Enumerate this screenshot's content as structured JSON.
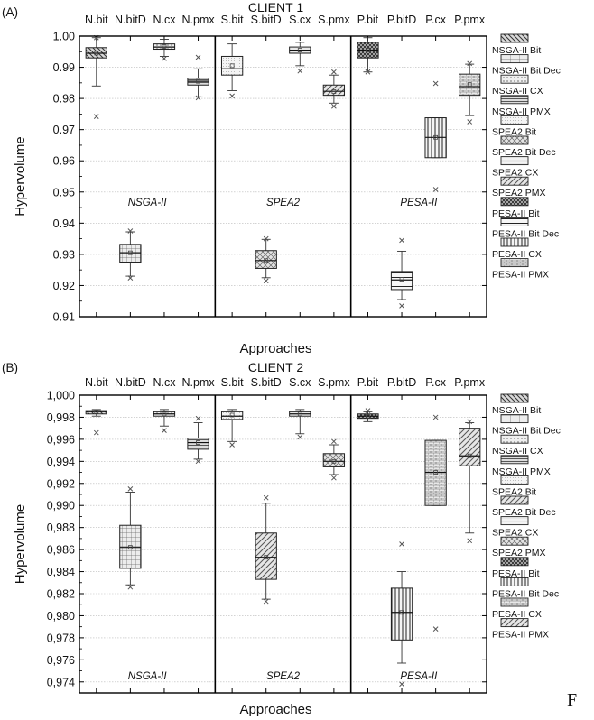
{
  "chart_data": [
    {
      "type": "box",
      "panel_label": "(A)",
      "title": "CLIENT 1",
      "xlabel": "Approaches",
      "ylabel": "Hypervolume",
      "ylim": [
        0.91,
        1.0
      ],
      "yticks": [
        0.91,
        0.92,
        0.93,
        0.94,
        0.95,
        0.96,
        0.97,
        0.98,
        0.99,
        1.0
      ],
      "ytick_labels": [
        "0.91",
        "0.92",
        "0.93",
        "0.94",
        "0.95",
        "0.96",
        "0.97",
        "0.98",
        "0.99",
        "1.00"
      ],
      "grid": true,
      "legend_position": "right",
      "categories": [
        "N.bit",
        "N.bitD",
        "N.cx",
        "N.pmx",
        "S.bit",
        "S.bitD",
        "S.cx",
        "S.pmx",
        "P.bit",
        "P.bitD",
        "P.cx",
        "P.pmx"
      ],
      "groups": [
        {
          "label": "NSGA-II",
          "start": 0,
          "end": 3
        },
        {
          "label": "SPEA2",
          "start": 4,
          "end": 7
        },
        {
          "label": "PESA-II",
          "start": 8,
          "end": 11
        }
      ],
      "series": [
        {
          "name": "NSGA-II Bit",
          "pattern": "diag-back",
          "whisker_low": 0.984,
          "q1": 0.993,
          "median": 0.9945,
          "q3": 0.9963,
          "whisker_high": 0.9995,
          "mean": 0.9945,
          "outliers": [
            0.9742,
            0.9995
          ]
        },
        {
          "name": "NSGA-II Bit Dec",
          "pattern": "grid",
          "whisker_low": 0.923,
          "q1": 0.9275,
          "median": 0.9305,
          "q3": 0.9332,
          "whisker_high": 0.9372,
          "mean": 0.9305,
          "outliers": [
            0.9224,
            0.9375
          ]
        },
        {
          "name": "NSGA-II CX",
          "pattern": "dots",
          "whisker_low": 0.9935,
          "q1": 0.9958,
          "median": 0.9965,
          "q3": 0.9975,
          "whisker_high": 0.999,
          "mean": 0.9967,
          "outliers": [
            0.9928
          ]
        },
        {
          "name": "NSGA-II PMX",
          "pattern": "hlines",
          "whisker_low": 0.9805,
          "q1": 0.9843,
          "median": 0.9855,
          "q3": 0.9865,
          "whisker_high": 0.9895,
          "mean": 0.9855,
          "outliers": [
            0.9932,
            0.9802
          ]
        },
        {
          "name": "SPEA2 Bit",
          "pattern": "fine-dots",
          "whisker_low": 0.9825,
          "q1": 0.9875,
          "median": 0.9895,
          "q3": 0.9935,
          "whisker_high": 0.9975,
          "mean": 0.9905,
          "outliers": [
            0.9808
          ]
        },
        {
          "name": "SPEA2 Bit Dec",
          "pattern": "crosshatch",
          "whisker_low": 0.9225,
          "q1": 0.9255,
          "median": 0.928,
          "q3": 0.9312,
          "whisker_high": 0.9348,
          "mean": 0.928,
          "outliers": [
            0.9215,
            0.935
          ]
        },
        {
          "name": "SPEA2 CX",
          "pattern": "light",
          "whisker_low": 0.9905,
          "q1": 0.9945,
          "median": 0.9955,
          "q3": 0.9965,
          "whisker_high": 0.998,
          "mean": 0.9955,
          "outliers": [
            0.9888
          ]
        },
        {
          "name": "SPEA2 PMX",
          "pattern": "diag-fwd",
          "whisker_low": 0.9785,
          "q1": 0.981,
          "median": 0.9823,
          "q3": 0.9843,
          "whisker_high": 0.9875,
          "mean": 0.9822,
          "outliers": [
            0.9885,
            0.9775
          ]
        },
        {
          "name": "PESA-II Bit",
          "pattern": "dense-cross",
          "whisker_low": 0.9885,
          "q1": 0.993,
          "median": 0.9955,
          "q3": 0.998,
          "whisker_high": 0.9995,
          "mean": 0.9955,
          "outliers": [
            0.9885
          ]
        },
        {
          "name": "PESA-II Bit Dec",
          "pattern": "hlines-wide",
          "whisker_low": 0.9155,
          "q1": 0.9187,
          "median": 0.9218,
          "q3": 0.9245,
          "whisker_high": 0.931,
          "mean": 0.922,
          "outliers": [
            0.9345,
            0.9135
          ]
        },
        {
          "name": "PESA-II CX",
          "pattern": "vlines",
          "whisker_low": 0.961,
          "q1": 0.961,
          "median": 0.9675,
          "q3": 0.9738,
          "whisker_high": 0.9738,
          "mean": 0.9675,
          "outliers": [
            0.9848,
            0.9508
          ]
        },
        {
          "name": "PESA-II PMX",
          "pattern": "brick",
          "whisker_low": 0.9745,
          "q1": 0.981,
          "median": 0.9838,
          "q3": 0.9878,
          "whisker_high": 0.991,
          "mean": 0.9845,
          "outliers": [
            0.9912,
            0.9725
          ]
        }
      ]
    },
    {
      "type": "box",
      "panel_label": "(B)",
      "title": "CLIENT 2",
      "xlabel": "Approaches",
      "ylabel": "Hypervolume",
      "ylim": [
        0.973,
        1.0
      ],
      "yticks": [
        0.974,
        0.976,
        0.978,
        0.98,
        0.982,
        0.984,
        0.986,
        0.988,
        0.99,
        0.992,
        0.994,
        0.996,
        0.998,
        1.0
      ],
      "ytick_labels": [
        "0,974",
        "0,976",
        "0,978",
        "0,980",
        "0,982",
        "0,984",
        "0,986",
        "0,988",
        "0,990",
        "0,992",
        "0,994",
        "0,996",
        "0,998",
        "1,000"
      ],
      "grid": true,
      "legend_position": "right",
      "categories": [
        "N.bit",
        "N.bitD",
        "N.cx",
        "N.pmx",
        "S.bit",
        "S.bitD",
        "S.cx",
        "S.pmx",
        "P.bit",
        "P.bitD",
        "P.cx",
        "P.pmx"
      ],
      "groups": [
        {
          "label": "NSGA-II",
          "start": 0,
          "end": 3
        },
        {
          "label": "SPEA2",
          "start": 4,
          "end": 7
        },
        {
          "label": "PESA-II",
          "start": 8,
          "end": 11
        }
      ],
      "series": [
        {
          "name": "NSGA-II Bit",
          "pattern": "diag-back",
          "whisker_low": 0.9981,
          "q1": 0.9983,
          "median": 0.9985,
          "q3": 0.9986,
          "whisker_high": 0.9987,
          "mean": 0.9985,
          "outliers": [
            0.9966
          ]
        },
        {
          "name": "NSGA-II Bit Dec",
          "pattern": "grid",
          "whisker_low": 0.9828,
          "q1": 0.9843,
          "median": 0.9862,
          "q3": 0.9882,
          "whisker_high": 0.9912,
          "mean": 0.9862,
          "outliers": [
            0.9915,
            0.9826
          ]
        },
        {
          "name": "NSGA-II CX",
          "pattern": "dots",
          "whisker_low": 0.9972,
          "q1": 0.9981,
          "median": 0.9983,
          "q3": 0.9985,
          "whisker_high": 0.9987,
          "mean": 0.9983,
          "outliers": [
            0.9968
          ]
        },
        {
          "name": "NSGA-II PMX",
          "pattern": "hlines",
          "whisker_low": 0.9942,
          "q1": 0.9951,
          "median": 0.9957,
          "q3": 0.9961,
          "whisker_high": 0.9975,
          "mean": 0.9957,
          "outliers": [
            0.9979,
            0.994
          ]
        },
        {
          "name": "SPEA2 Bit",
          "pattern": "fine-dots",
          "whisker_low": 0.9958,
          "q1": 0.9978,
          "median": 0.9981,
          "q3": 0.9985,
          "whisker_high": 0.9987,
          "mean": 0.9982,
          "outliers": [
            0.9955
          ]
        },
        {
          "name": "SPEA2 Bit Dec",
          "pattern": "diag-fwd",
          "whisker_low": 0.9815,
          "q1": 0.9833,
          "median": 0.9853,
          "q3": 0.9875,
          "whisker_high": 0.9902,
          "mean": 0.9853,
          "outliers": [
            0.9907,
            0.9813
          ]
        },
        {
          "name": "SPEA2 CX",
          "pattern": "light",
          "whisker_low": 0.9965,
          "q1": 0.9981,
          "median": 0.9983,
          "q3": 0.9985,
          "whisker_high": 0.9987,
          "mean": 0.9983,
          "outliers": [
            0.9962
          ]
        },
        {
          "name": "SPEA2 PMX",
          "pattern": "crosshatch",
          "whisker_low": 0.9928,
          "q1": 0.9935,
          "median": 0.994,
          "q3": 0.9947,
          "whisker_high": 0.9955,
          "mean": 0.994,
          "outliers": [
            0.9958,
            0.9925
          ]
        },
        {
          "name": "PESA-II Bit",
          "pattern": "dense-cross",
          "whisker_low": 0.9976,
          "q1": 0.9979,
          "median": 0.9981,
          "q3": 0.9983,
          "whisker_high": 0.9985,
          "mean": 0.9981,
          "outliers": [
            0.9986
          ]
        },
        {
          "name": "PESA-II Bit Dec",
          "pattern": "vlines",
          "whisker_low": 0.9757,
          "q1": 0.9778,
          "median": 0.9803,
          "q3": 0.9825,
          "whisker_high": 0.984,
          "mean": 0.9803,
          "outliers": [
            0.9865,
            0.9738
          ]
        },
        {
          "name": "PESA-II CX",
          "pattern": "brick",
          "whisker_low": 0.99,
          "q1": 0.99,
          "median": 0.993,
          "q3": 0.9959,
          "whisker_high": 0.9959,
          "mean": 0.993,
          "outliers": [
            0.998,
            0.9788
          ]
        },
        {
          "name": "PESA-II PMX",
          "pattern": "diag-fwd",
          "whisker_low": 0.9875,
          "q1": 0.9936,
          "median": 0.9945,
          "q3": 0.997,
          "whisker_high": 0.9975,
          "mean": 0.9945,
          "outliers": [
            0.9976,
            0.9868
          ]
        }
      ]
    }
  ],
  "footer_text": "F"
}
